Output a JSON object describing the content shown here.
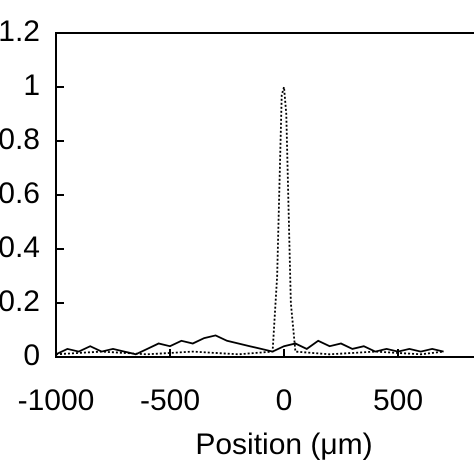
{
  "chart_data": {
    "type": "line",
    "xlabel": "Position (μm)",
    "xlim": [
      -1000,
      1000
    ],
    "xticks": [
      -1000,
      -500,
      0,
      500
    ],
    "ylim": [
      0,
      1.2
    ],
    "yticks": [
      0,
      0.2,
      0.4,
      0.6,
      0.8,
      1,
      1.2
    ],
    "series": [
      {
        "color": "#000000",
        "dash": "solid",
        "x": [
          -1000,
          -950,
          -900,
          -850,
          -800,
          -750,
          -700,
          -650,
          -600,
          -550,
          -500,
          -450,
          -400,
          -350,
          -300,
          -250,
          -200,
          -150,
          -100,
          -50,
          0,
          50,
          100,
          150,
          200,
          250,
          300,
          350,
          400,
          450,
          500,
          550,
          600,
          650,
          700
        ],
        "values": [
          0.01,
          0.03,
          0.02,
          0.04,
          0.02,
          0.03,
          0.02,
          0.01,
          0.03,
          0.05,
          0.04,
          0.06,
          0.05,
          0.07,
          0.08,
          0.06,
          0.05,
          0.04,
          0.03,
          0.02,
          0.04,
          0.05,
          0.03,
          0.06,
          0.04,
          0.05,
          0.03,
          0.04,
          0.02,
          0.03,
          0.02,
          0.03,
          0.02,
          0.03,
          0.02
        ]
      },
      {
        "color": "#000000",
        "dash": "dotted",
        "x": [
          -1000,
          -800,
          -600,
          -400,
          -200,
          -50,
          -30,
          -10,
          0,
          10,
          30,
          50,
          200,
          400,
          600,
          700
        ],
        "values": [
          0.01,
          0.02,
          0.01,
          0.02,
          0.01,
          0.02,
          0.3,
          0.97,
          1.0,
          0.9,
          0.2,
          0.02,
          0.01,
          0.02,
          0.01,
          0.02
        ]
      }
    ]
  }
}
